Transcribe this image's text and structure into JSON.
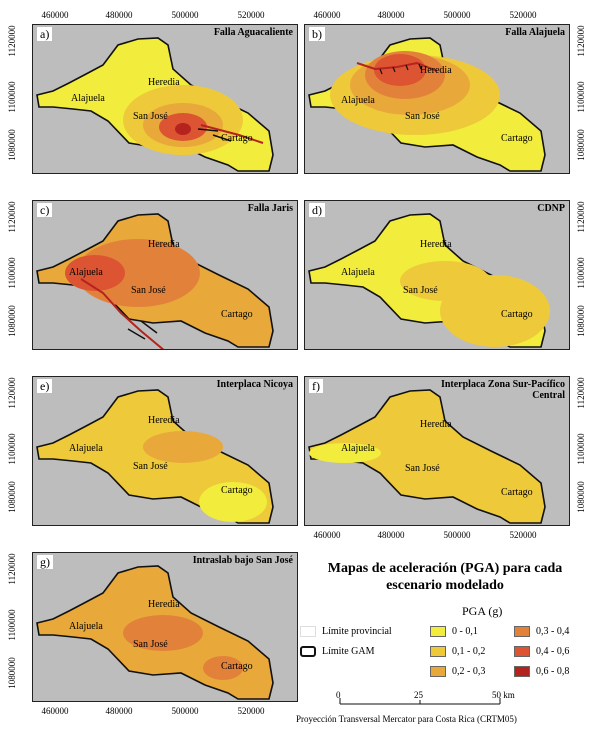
{
  "panels": [
    {
      "label": "a)",
      "title": "Falla Aguacaliente",
      "scenario": "aguacaliente"
    },
    {
      "label": "b)",
      "title": "Falla Alajuela",
      "scenario": "alajuela"
    },
    {
      "label": "c)",
      "title": "Falla Jaris",
      "scenario": "jaris"
    },
    {
      "label": "d)",
      "title": "CDNP",
      "scenario": "cdnp"
    },
    {
      "label": "e)",
      "title": "Interplaca Nicoya",
      "scenario": "nicoya"
    },
    {
      "label": "f)",
      "title": "Interplaca Zona Sur-Pacífico Central",
      "scenario": "pacifico"
    },
    {
      "label": "g)",
      "title": "Intraslab bajo San José",
      "scenario": "intraslab"
    }
  ],
  "cities": {
    "heredia": "Heredia",
    "alajuela": "Alajuela",
    "sanjose": "San José",
    "cartago": "Cartago"
  },
  "x_ticks": [
    "460000",
    "480000",
    "500000",
    "520000"
  ],
  "y_ticks": [
    "1080000",
    "1100000",
    "1120000"
  ],
  "legend": {
    "title": "Mapas de aceleración (PGA) para cada escenario modelado",
    "pga_heading": "PGA (g)",
    "classes": [
      {
        "range": "0 - 0,1",
        "color": "#f2ec3c"
      },
      {
        "range": "0,1 - 0,2",
        "color": "#eec93a"
      },
      {
        "range": "0,2 - 0,3",
        "color": "#e8a83a"
      },
      {
        "range": "0,3 - 0,4",
        "color": "#e2823a"
      },
      {
        "range": "0,4 - 0,6",
        "color": "#dc5432"
      },
      {
        "range": "0,6 - 0,8",
        "color": "#b5231f"
      }
    ],
    "boundaries": [
      {
        "label": "Límite provincial",
        "color": "#dddddd"
      },
      {
        "label": "Límite GAM",
        "color": "#111111"
      }
    ]
  },
  "scale_bar": {
    "ticks": [
      "0",
      "25",
      "50 km"
    ]
  },
  "projection": "Proyección Transversal Mercator para Costa Rica (CRTM05)"
}
